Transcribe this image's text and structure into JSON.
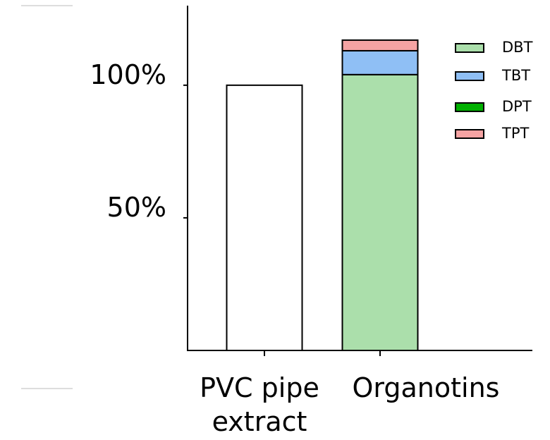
{
  "chart_data": {
    "type": "stacked-bar",
    "categories": [
      "PVC pipe extract",
      "Organotins"
    ],
    "values": [
      100,
      null
    ],
    "color": "#ffffff",
    "series": [
      {
        "name": "DBT",
        "color": "#abdfab",
        "values": [
          null,
          104
        ]
      },
      {
        "name": "TBT",
        "color": "#8fbff5",
        "values": [
          null,
          9
        ]
      },
      {
        "name": "DPT",
        "color": "#00b000",
        "values": [
          null,
          0
        ]
      },
      {
        "name": "TPT",
        "color": "#f5a3a3",
        "values": [
          null,
          4
        ]
      }
    ],
    "ylim": [
      0,
      130
    ],
    "yticks": [
      {
        "value": 50,
        "label": "50%"
      },
      {
        "value": 100,
        "label": "100%"
      }
    ]
  }
}
